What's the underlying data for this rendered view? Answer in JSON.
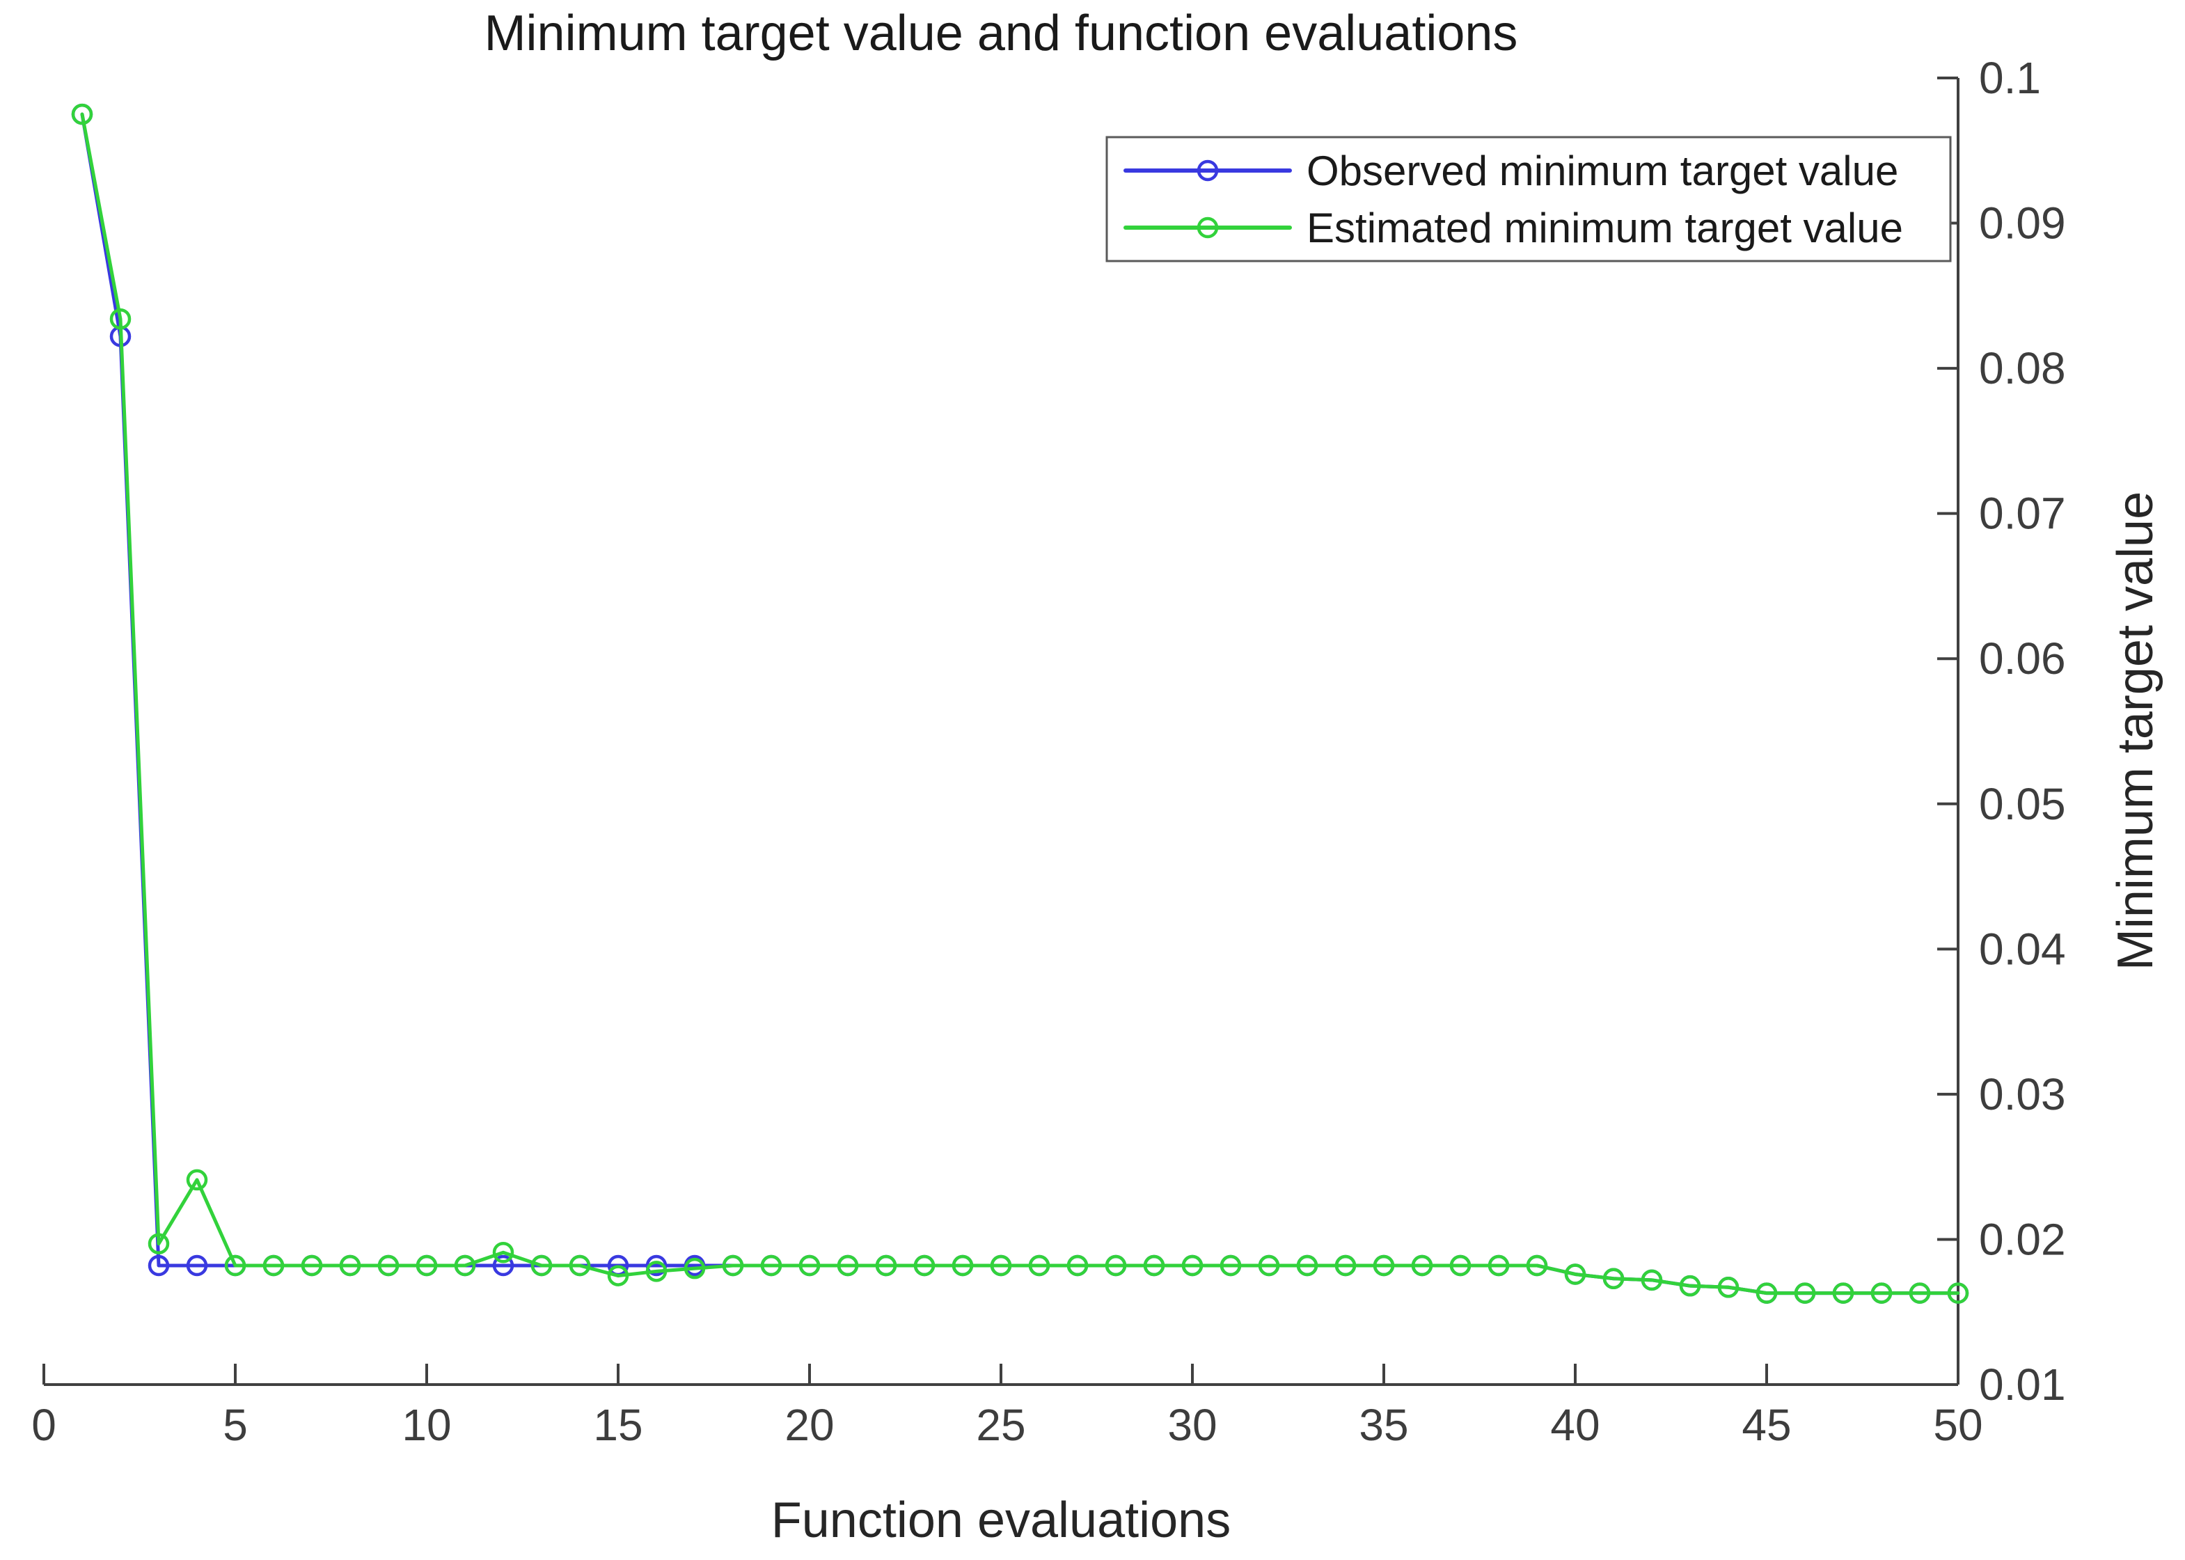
{
  "title": "Minimum target value and function evaluations",
  "x_axis": {
    "label": "Function evaluations",
    "tick_labels": [
      "0",
      "5",
      "10",
      "15",
      "20",
      "25",
      "30",
      "35",
      "40",
      "45",
      "50"
    ]
  },
  "y_axis": {
    "label": "Minimum target value",
    "side": "right",
    "tick_labels": [
      "0.01",
      "0.02",
      "0.03",
      "0.04",
      "0.05",
      "0.06",
      "0.07",
      "0.08",
      "0.09",
      "0.1"
    ]
  },
  "legend": {
    "position": "upper-right-inside",
    "entries": [
      {
        "label": "Observed minimum target value",
        "color": "#3939e0"
      },
      {
        "label": "Estimated minimum target value",
        "color": "#32d23b"
      }
    ]
  },
  "colors": {
    "observed_line": "#3939e0",
    "estimated_line": "#32d23b",
    "axis": "#404040",
    "tick_text": "#3d3d3d",
    "title_text": "#1a1a1a",
    "legend_border": "#5a5a5a",
    "background": "#ffffff"
  },
  "chart_data": {
    "type": "line",
    "title": "Minimum target value and function evaluations",
    "xlabel": "Function evaluations",
    "ylabel": "Minimum target value",
    "xlim": [
      0,
      50
    ],
    "ylim": [
      0.01,
      0.1
    ],
    "x_ticks": [
      0,
      5,
      10,
      15,
      20,
      25,
      30,
      35,
      40,
      45,
      50
    ],
    "y_ticks": [
      0.01,
      0.02,
      0.03,
      0.04,
      0.05,
      0.06,
      0.07,
      0.08,
      0.09,
      0.1
    ],
    "grid": "off",
    "marker": "o",
    "legend_position": "upper right (inside axes)",
    "x": [
      1,
      2,
      3,
      4,
      5,
      6,
      7,
      8,
      9,
      10,
      11,
      12,
      13,
      14,
      15,
      16,
      17,
      18,
      19,
      20,
      21,
      22,
      23,
      24,
      25,
      26,
      27,
      28,
      29,
      30,
      31,
      32,
      33,
      34,
      35,
      36,
      37,
      38,
      39,
      40,
      41,
      42,
      43,
      44,
      45,
      46,
      47,
      48,
      49,
      50
    ],
    "series": [
      {
        "name": "Observed minimum target value",
        "color": "#3939e0",
        "values": [
          0.0975,
          0.0822,
          0.0182,
          0.0182,
          0.0182,
          0.0182,
          0.0182,
          0.0182,
          0.0182,
          0.0182,
          0.0182,
          0.0182,
          0.0182,
          0.0182,
          0.0182,
          0.0182,
          0.0182,
          0.0182,
          0.0182,
          0.0182,
          0.0182,
          0.0182,
          0.0182,
          0.0182,
          0.0182,
          0.0182,
          0.0182,
          0.0182,
          0.0182,
          0.0182,
          0.0182,
          0.0182,
          0.0182,
          0.0182,
          0.0182,
          0.0182,
          0.0182,
          0.0182,
          0.0182,
          0.0176,
          0.0173,
          0.0172,
          0.0168,
          0.0167,
          0.0163,
          0.0163,
          0.0163,
          0.0163,
          0.0163,
          0.0163
        ]
      },
      {
        "name": "Estimated minimum target value",
        "color": "#32d23b",
        "values": [
          0.0975,
          0.0834,
          0.0197,
          0.0241,
          0.0182,
          0.0182,
          0.0182,
          0.0182,
          0.0182,
          0.0182,
          0.0182,
          0.0191,
          0.0182,
          0.0182,
          0.0175,
          0.0178,
          0.018,
          0.0182,
          0.0182,
          0.0182,
          0.0182,
          0.0182,
          0.0182,
          0.0182,
          0.0182,
          0.0182,
          0.0182,
          0.0182,
          0.0182,
          0.0182,
          0.0182,
          0.0182,
          0.0182,
          0.0182,
          0.0182,
          0.0182,
          0.0182,
          0.0182,
          0.0182,
          0.0176,
          0.0173,
          0.0172,
          0.0168,
          0.0167,
          0.0163,
          0.0163,
          0.0163,
          0.0163,
          0.0163,
          0.0163
        ]
      }
    ]
  }
}
